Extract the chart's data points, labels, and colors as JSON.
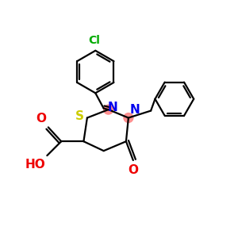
{
  "bg_color": "#ffffff",
  "atom_colors": {
    "C": "#000000",
    "N": "#0000ee",
    "O": "#ee0000",
    "S": "#cccc00",
    "Cl": "#00aa00"
  },
  "bond_color": "#000000",
  "highlight_color": "#ff8888",
  "figsize": [
    3.0,
    3.0
  ],
  "dpi": 100,
  "lw": 1.6
}
